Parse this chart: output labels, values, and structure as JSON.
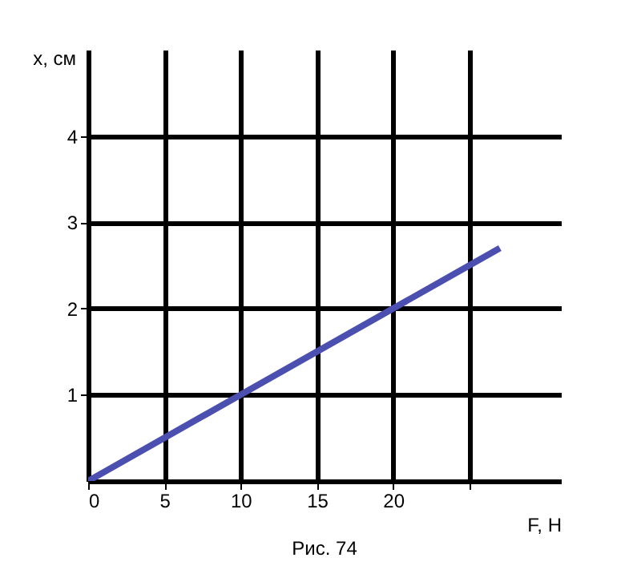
{
  "chart_data": {
    "type": "line",
    "xlabel": "F, Н",
    "ylabel": "x, см",
    "annotations": [
      "Рис. 74"
    ],
    "x": [
      0,
      27
    ],
    "series": [
      {
        "color": "#4b4fb0",
        "values": [
          0,
          2.7
        ]
      }
    ],
    "xlim": [
      0,
      31
    ],
    "ylim": [
      0,
      5
    ],
    "xticks": [
      0,
      5,
      10,
      15,
      20,
      {
        "value": 25,
        "label": null
      }
    ],
    "yticks": [
      1,
      2,
      3,
      4
    ],
    "grid": true,
    "marker": "none",
    "line_style": "solid"
  }
}
